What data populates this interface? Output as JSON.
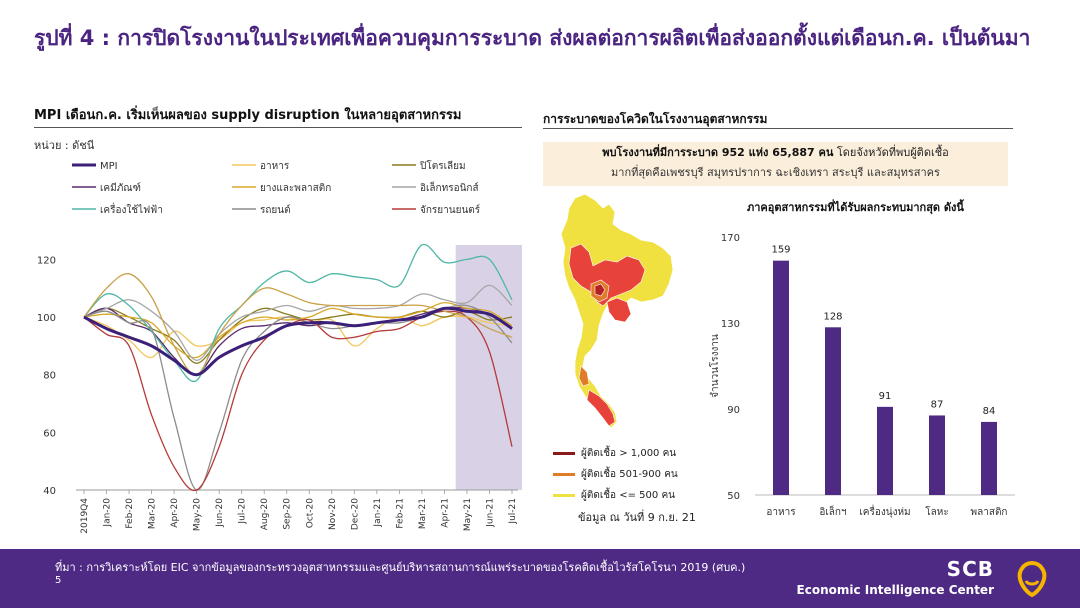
{
  "page": {
    "title": "รูปที่ 4 : การปิดโรงงานในประเทศเพื่อควบคุมการระบาด ส่งผลต่อการผลิตเพื่อส่งออกตั้งแต่เดือนก.ค. เป็นต้นมา",
    "left_heading": "MPI เดือนก.ค. เริ่มเห็นผลของ supply disruption ในหลายอุตสาหกรรม",
    "unit": "หน่วย : ดัชนี",
    "right_heading": "การระบาดของโควิดในโรงงานอุตสาหกรรม",
    "info_line1": "พบโรงงานที่มีการระบาด  952 แห่ง 65,887 คน",
    "info_line1_rest": " โดยจังหวัดที่พบผู้ติดเชื้อ",
    "info_line2": "มากที่สุดคือเพชรบุรี สมุทรปราการ ฉะเชิงเทรา สระบุรี และสมุทรสาคร",
    "bar_title": "ภาคอุตสาหกรรมที่ได้รับผลกระทบมากสุด  ดังนี้",
    "map_legend": [
      {
        "label": "ผู้ติดเชื้อ > 1,000 คน",
        "color": "#8b1a1a"
      },
      {
        "label": "ผู้ติดเชื้อ 501-900 คน",
        "color": "#e07b2a"
      },
      {
        "label": "ผู้ติดเชื้อ <= 500 คน",
        "color": "#f0e040"
      }
    ],
    "map_note": "ข้อมูล ณ วันที่ 9 ก.ย. 21",
    "footer_source": "ที่มา : การวิเคราะห์โดย EIC จากข้อมูลของกระทรวงอุตสาหกรรมและศูนย์บริหารสถานการณ์แพร่ระบาดของโรคติดเชื้อไวรัสโคโรนา 2019 (ศบค.)",
    "footer_page": "5",
    "brand_1": "SCB",
    "brand_2": "Economic Intelligence Center"
  },
  "chart_data": [
    {
      "type": "line",
      "categories": [
        "2019Q4",
        "Jan-20",
        "Feb-20",
        "Mar-20",
        "Apr-20",
        "May-20",
        "Jun-20",
        "Jul-20",
        "Aug-20",
        "Sep-20",
        "Oct-20",
        "Nov-20",
        "Dec-20",
        "Jan-21",
        "Feb-21",
        "Mar-21",
        "Apr-21",
        "May-21",
        "Jun-21",
        "Jul-21"
      ],
      "ylim": [
        40,
        125
      ],
      "yticks": [
        40,
        60,
        80,
        100,
        120
      ],
      "highlight_range": [
        "May-21",
        "Jul-21"
      ],
      "highlight_color": "#d9d2e6",
      "series": [
        {
          "name": "MPI",
          "color": "#3b1f78",
          "width": 3,
          "values": [
            100,
            96,
            93,
            90,
            85,
            80,
            86,
            90,
            93,
            97,
            98,
            98,
            97,
            98,
            99,
            100,
            103,
            102,
            101,
            96
          ]
        },
        {
          "name": "อาหาร",
          "color": "#f2c75c",
          "width": 1.3,
          "values": [
            100,
            97,
            92,
            86,
            95,
            90,
            92,
            98,
            99,
            100,
            98,
            99,
            90,
            96,
            100,
            97,
            100,
            100,
            98,
            97
          ]
        },
        {
          "name": "ปิโตรเลียม",
          "color": "#8a7a1e",
          "width": 1.3,
          "values": [
            100,
            103,
            100,
            96,
            92,
            84,
            92,
            99,
            103,
            101,
            99,
            100,
            101,
            100,
            100,
            102,
            100,
            102,
            99,
            100
          ]
        },
        {
          "name": "เคมีภัณฑ์",
          "color": "#5a2a6a",
          "width": 1.3,
          "values": [
            100,
            103,
            98,
            95,
            86,
            80,
            90,
            96,
            97,
            98,
            97,
            98,
            97,
            98,
            99,
            101,
            103,
            103,
            101,
            96
          ]
        },
        {
          "name": "ยางและพลาสติก",
          "color": "#d8a828",
          "width": 1.3,
          "values": [
            100,
            101,
            100,
            98,
            90,
            86,
            93,
            98,
            100,
            99,
            100,
            103,
            101,
            100,
            100,
            102,
            105,
            103,
            102,
            97
          ]
        },
        {
          "name": "อิเล็กทรอนิกส์",
          "color": "#a6a6a6",
          "width": 1.3,
          "values": [
            100,
            103,
            106,
            102,
            95,
            85,
            94,
            100,
            102,
            104,
            102,
            104,
            103,
            103,
            104,
            108,
            106,
            105,
            111,
            104
          ]
        },
        {
          "name": "เครื่องใช้ไฟฟ้า",
          "color": "#4fb6a6",
          "width": 1.3,
          "values": [
            100,
            108,
            104,
            95,
            85,
            78,
            96,
            104,
            112,
            116,
            112,
            115,
            114,
            113,
            111,
            125,
            119,
            120,
            120,
            106
          ]
        },
        {
          "name": "รถยนต์",
          "color": "#8c8c8c",
          "width": 1.3,
          "values": [
            100,
            102,
            98,
            96,
            65,
            40,
            60,
            85,
            95,
            100,
            98,
            96,
            97,
            98,
            98,
            100,
            103,
            104,
            100,
            91
          ]
        },
        {
          "name": "จักรยานยนตร์",
          "color": "#b53a3a",
          "width": 1.3,
          "values": [
            100,
            94,
            90,
            66,
            48,
            40,
            55,
            80,
            92,
            97,
            99,
            93,
            93,
            95,
            96,
            100,
            102,
            100,
            88,
            55
          ]
        },
        {
          "name": "",
          "color": "#c9a24a",
          "width": 1.3,
          "values": [
            100,
            110,
            115,
            107,
            90,
            80,
            94,
            104,
            110,
            108,
            105,
            104,
            104,
            104,
            104,
            104,
            102,
            100,
            96,
            93
          ]
        }
      ]
    },
    {
      "type": "bar",
      "categories": [
        "อาหาร",
        "อิเล็กฯ",
        "เครื่องนุ่งห่ม",
        "โลหะ",
        "พลาสติก"
      ],
      "values": [
        159,
        128,
        91,
        87,
        84
      ],
      "ylim": [
        50,
        170
      ],
      "yticks": [
        50,
        90,
        130,
        170
      ],
      "ylabel": "จำนวนโรงงาน",
      "color": "#4e2a84"
    }
  ]
}
